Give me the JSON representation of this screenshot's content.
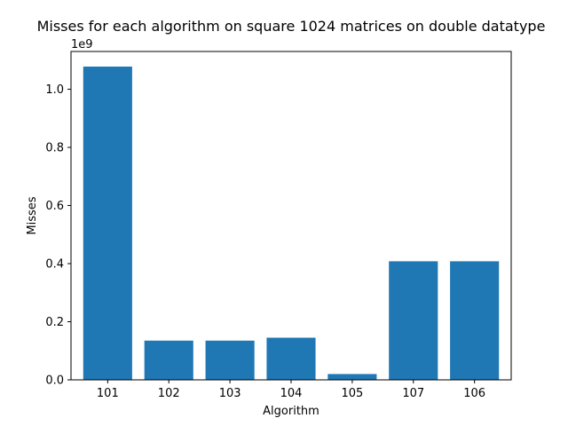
{
  "chart_data": {
    "type": "bar",
    "title": "Misses for each algorithm on square 1024 matrices on double datatype",
    "xlabel": "Algorithm",
    "ylabel": "Misses",
    "offset_label": "1e9",
    "categories": [
      "101",
      "102",
      "103",
      "104",
      "105",
      "107",
      "106"
    ],
    "values": [
      1078000000.0,
      135000000.0,
      135000000.0,
      145000000.0,
      20000000.0,
      408000000.0,
      408000000.0
    ],
    "ylim": [
      0,
      1130000000.0
    ],
    "yticks": [
      0,
      200000000.0,
      400000000.0,
      600000000.0,
      800000000.0,
      1000000000.0
    ],
    "ytick_labels": [
      "0.0",
      "0.2",
      "0.4",
      "0.6",
      "0.8",
      "1.0"
    ],
    "bar_color": "#1f77b4",
    "grid": false,
    "legend": "none"
  }
}
